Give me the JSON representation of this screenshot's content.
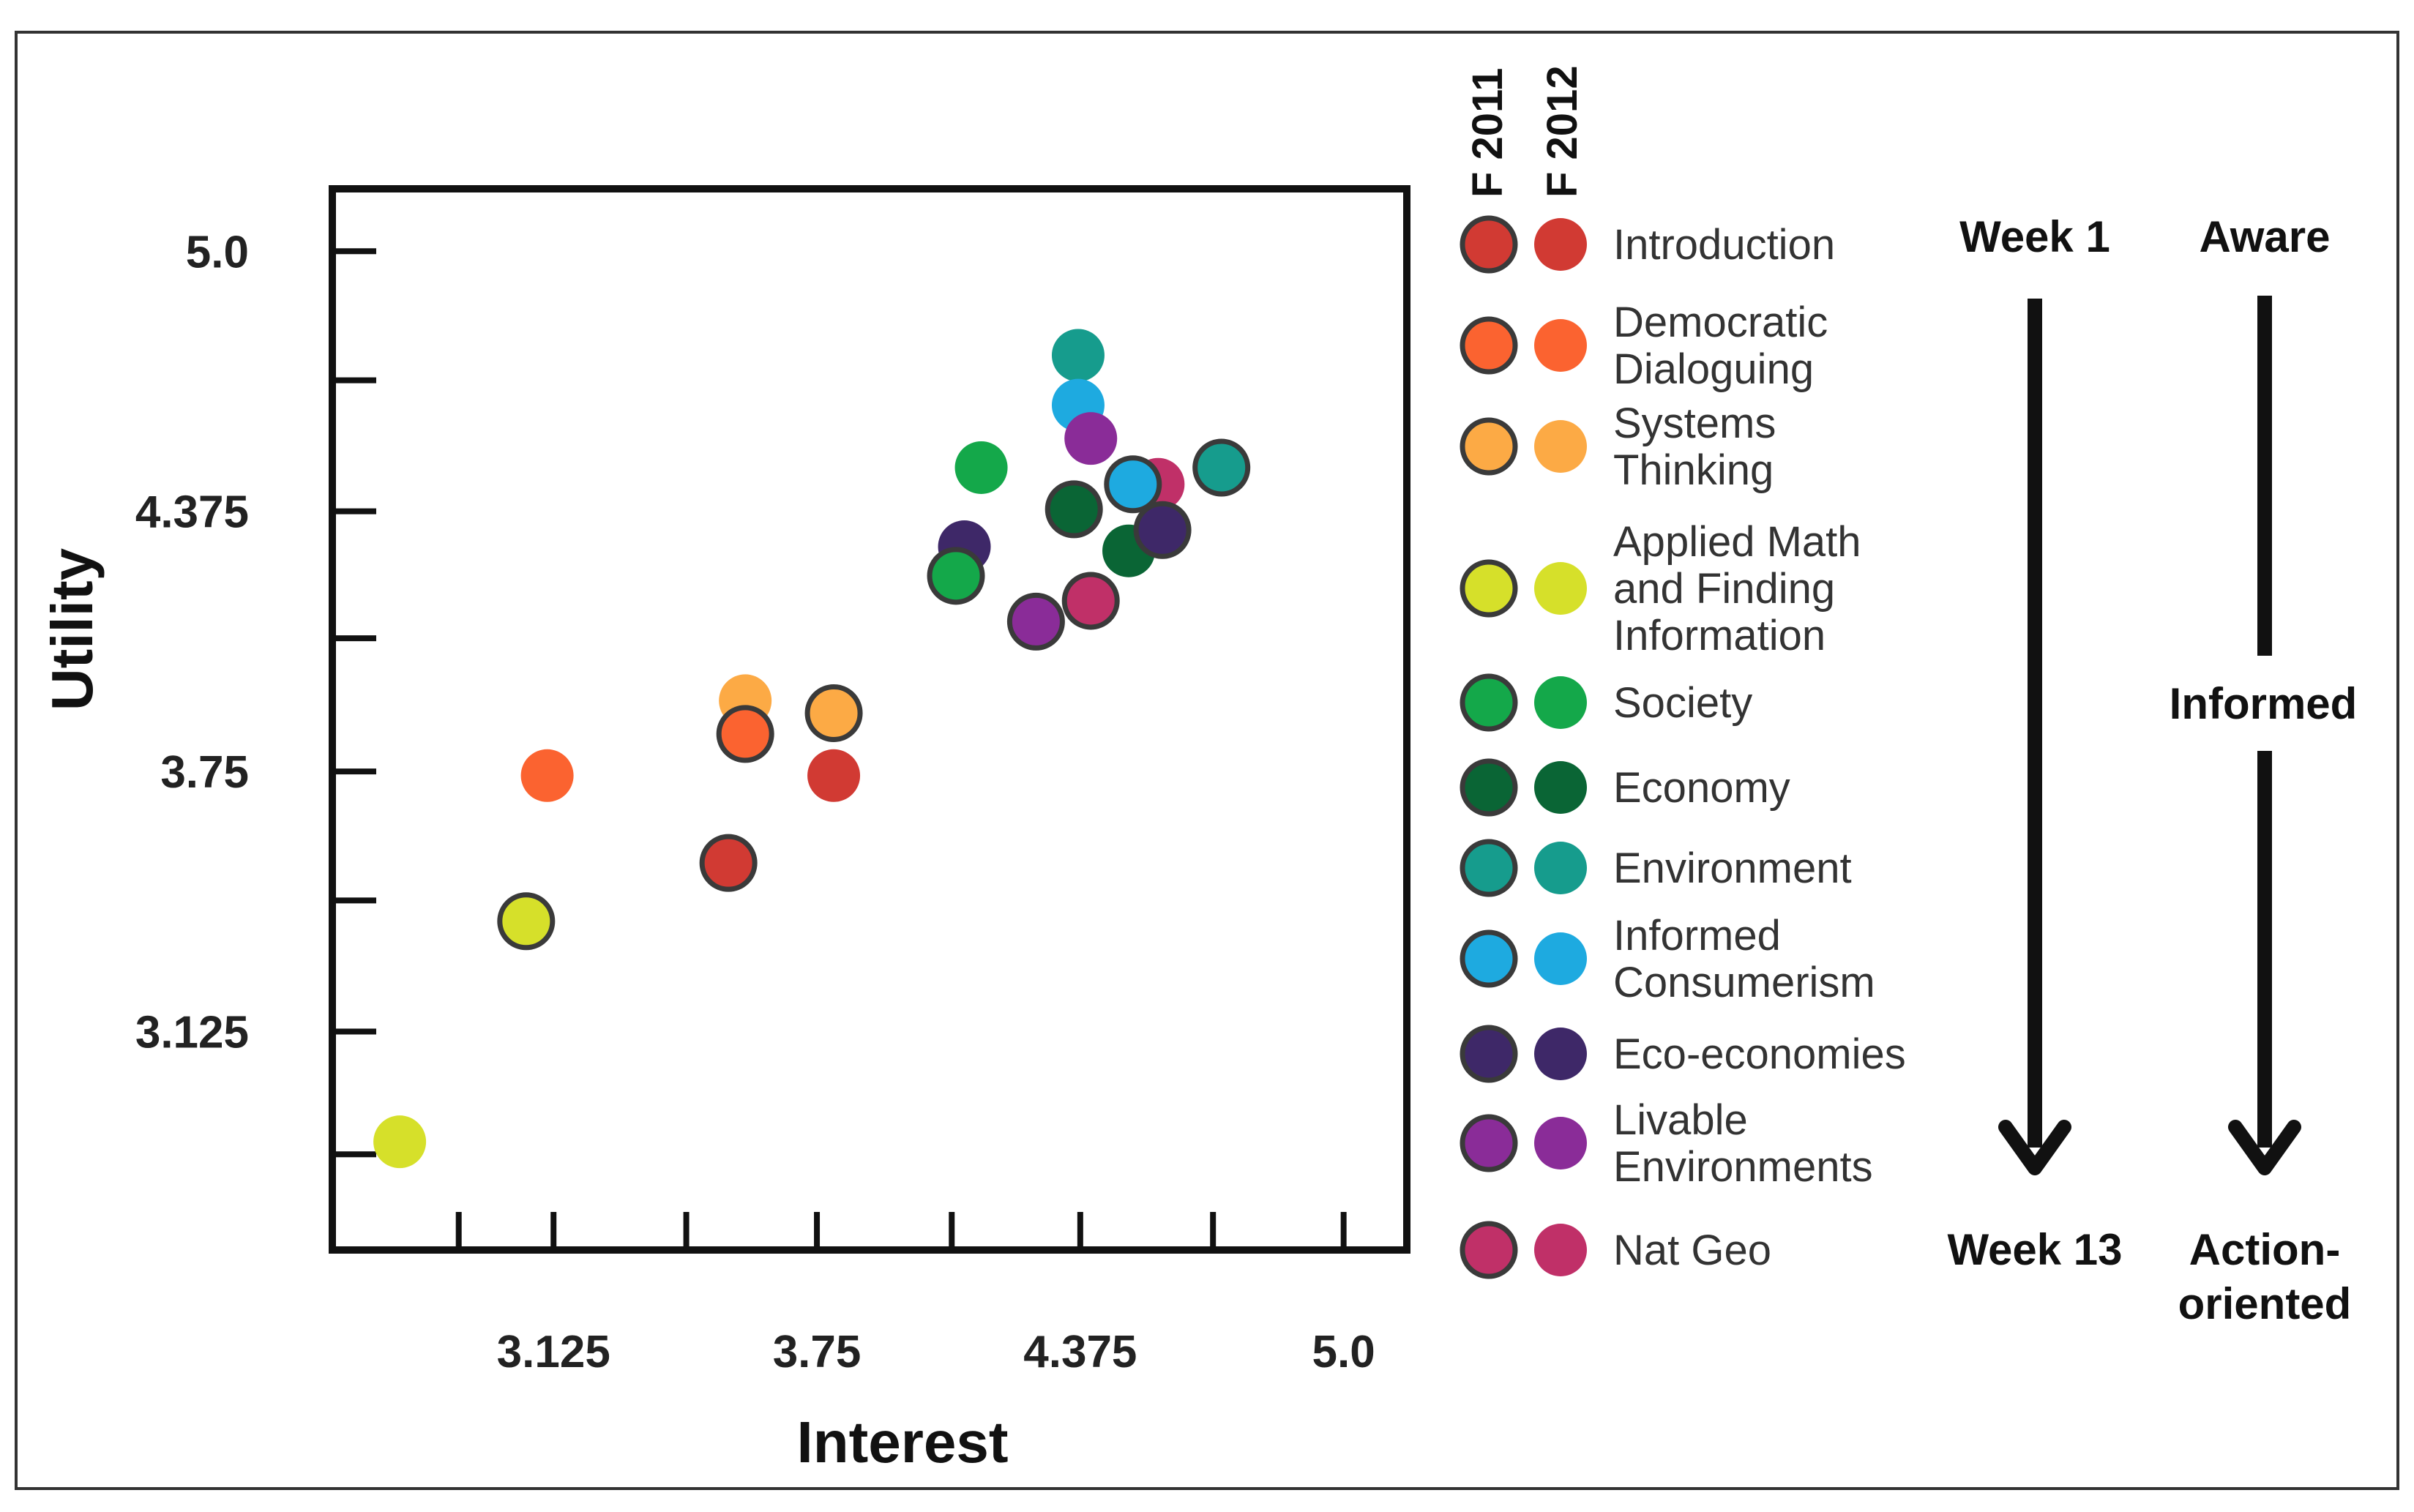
{
  "chart_data": {
    "type": "scatter",
    "xlabel": "Interest",
    "ylabel": "Utility",
    "xlim": [
      2.6,
      5.15
    ],
    "ylim": [
      2.6,
      5.15
    ],
    "xticks": [
      3.125,
      3.75,
      4.375,
      5.0
    ],
    "xtick_labels": [
      "3.125",
      "3.75",
      "4.375",
      "5.0"
    ],
    "yticks": [
      3.125,
      3.75,
      4.375,
      5.0
    ],
    "ytick_labels": [
      "3.125",
      "3.75",
      "4.375",
      "5.0"
    ],
    "x_minor_ticks": [
      2.9,
      3.44,
      4.07,
      4.69
    ],
    "y_minor_ticks": [
      2.83,
      3.44,
      4.07,
      4.69
    ],
    "year_headers": [
      "F 2011",
      "F 2012"
    ],
    "series": [
      {
        "name": "Introduction",
        "label_lines": [
          "Introduction"
        ],
        "color": "#d13a33",
        "points": [
          {
            "year": "F 2011",
            "x": 3.54,
            "y": 3.53
          },
          {
            "year": "F 2012",
            "x": 3.79,
            "y": 3.74
          }
        ]
      },
      {
        "name": "Democratic Dialoguing",
        "label_lines": [
          "Democratic",
          "Dialoguing"
        ],
        "color": "#fb6330",
        "points": [
          {
            "year": "F 2011",
            "x": 3.58,
            "y": 3.84
          },
          {
            "year": "F 2012",
            "x": 3.11,
            "y": 3.74
          }
        ]
      },
      {
        "name": "Systems Thinking",
        "label_lines": [
          "Systems",
          "Thinking"
        ],
        "color": "#fcaa45",
        "points": [
          {
            "year": "F 2011",
            "x": 3.79,
            "y": 3.89
          },
          {
            "year": "F 2012",
            "x": 3.58,
            "y": 3.92
          }
        ]
      },
      {
        "name": "Applied Math and Finding Information",
        "label_lines": [
          "Applied Math",
          "and Finding",
          "Information"
        ],
        "color": "#d6e02a",
        "points": [
          {
            "year": "F 2011",
            "x": 3.06,
            "y": 3.39
          },
          {
            "year": "F 2012",
            "x": 2.76,
            "y": 2.86
          }
        ]
      },
      {
        "name": "Society",
        "label_lines": [
          "Society"
        ],
        "color": "#14a84a",
        "points": [
          {
            "year": "F 2011",
            "x": 4.08,
            "y": 4.22
          },
          {
            "year": "F 2012",
            "x": 4.14,
            "y": 4.48
          }
        ]
      },
      {
        "name": "Economy",
        "label_lines": [
          "Economy"
        ],
        "color": "#0a6535",
        "points": [
          {
            "year": "F 2011",
            "x": 4.36,
            "y": 4.38
          },
          {
            "year": "F 2012",
            "x": 4.49,
            "y": 4.28
          }
        ]
      },
      {
        "name": "Environment",
        "label_lines": [
          "Environment"
        ],
        "color": "#169c8d",
        "points": [
          {
            "year": "F 2011",
            "x": 4.71,
            "y": 4.48
          },
          {
            "year": "F 2012",
            "x": 4.37,
            "y": 4.75
          }
        ]
      },
      {
        "name": "Informed Consumerism",
        "label_lines": [
          "Informed",
          "Consumerism"
        ],
        "color": "#1eaae0",
        "points": [
          {
            "year": "F 2011",
            "x": 4.5,
            "y": 4.44
          },
          {
            "year": "F 2012",
            "x": 4.37,
            "y": 4.63
          }
        ]
      },
      {
        "name": "Eco-economies",
        "label_lines": [
          "Eco-economies"
        ],
        "color": "#3e2868",
        "points": [
          {
            "year": "F 2011",
            "x": 4.57,
            "y": 4.33
          },
          {
            "year": "F 2012",
            "x": 4.1,
            "y": 4.29
          }
        ]
      },
      {
        "name": "Livable Environments",
        "label_lines": [
          "Livable",
          "Environments"
        ],
        "color": "#8a2c98",
        "points": [
          {
            "year": "F 2011",
            "x": 4.27,
            "y": 4.11
          },
          {
            "year": "F 2012",
            "x": 4.4,
            "y": 4.55
          }
        ]
      },
      {
        "name": "Nat Geo",
        "label_lines": [
          "Nat Geo"
        ],
        "color": "#c03068",
        "points": [
          {
            "year": "F 2011",
            "x": 4.4,
            "y": 4.16
          },
          {
            "year": "F 2012",
            "x": 4.56,
            "y": 4.44
          }
        ]
      }
    ]
  },
  "timeline": {
    "start": "Week 1",
    "end": "Week 13"
  },
  "awareness": {
    "start": "Aware",
    "middle": "Informed",
    "end_lines": [
      "Action-",
      "oriented"
    ]
  }
}
